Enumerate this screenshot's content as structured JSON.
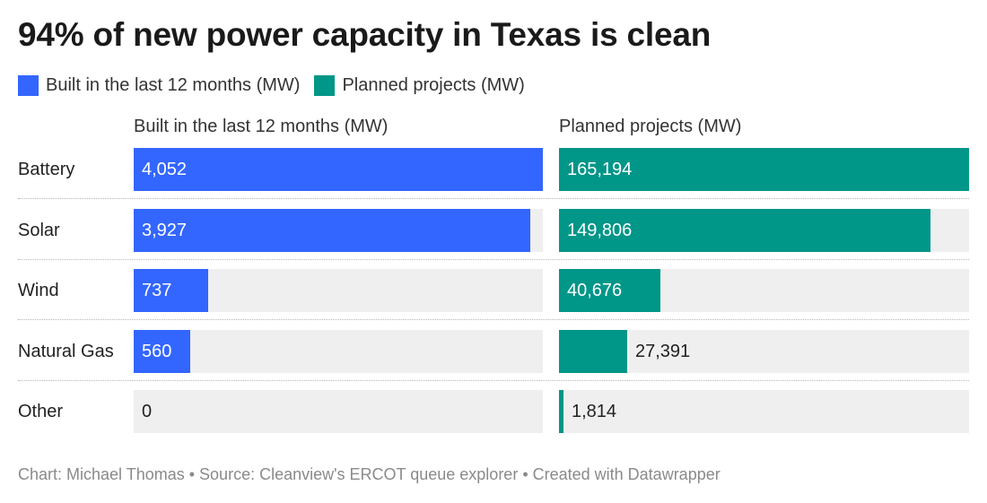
{
  "title": "94% of new power capacity in Texas is clean",
  "legend": [
    {
      "label": "Built in the last 12 months (MW)",
      "color": "#3366ff"
    },
    {
      "label": "Planned projects (MW)",
      "color": "#009688"
    }
  ],
  "chart_data": {
    "type": "bar",
    "orientation": "horizontal",
    "categories": [
      "Battery",
      "Solar",
      "Wind",
      "Natural Gas",
      "Other"
    ],
    "series": [
      {
        "name": "Built in the last 12 months (MW)",
        "color": "#3366ff",
        "values": [
          4052,
          3927,
          737,
          560,
          0
        ],
        "labels": [
          "4,052",
          "3,927",
          "737",
          "560",
          "0"
        ]
      },
      {
        "name": "Planned projects (MW)",
        "color": "#009688",
        "values": [
          165194,
          149806,
          40676,
          27391,
          1814
        ],
        "labels": [
          "165,194",
          "149,806",
          "40,676",
          "27,391",
          "1,814"
        ]
      }
    ],
    "title": "94% of new power capacity in Texas is clean",
    "grid": false,
    "legend_position": "top-left"
  },
  "footer": "Chart: Michael Thomas • Source: Cleanview's ERCOT queue explorer • Created with Datawrapper"
}
